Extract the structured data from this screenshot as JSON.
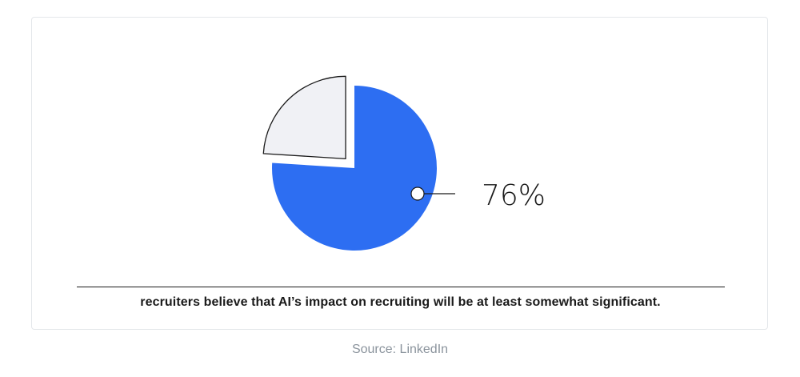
{
  "chart_data": {
    "type": "pie",
    "slices": [
      {
        "label": "",
        "value": 76
      },
      {
        "label": "",
        "value": 24
      }
    ],
    "data_label": "76%",
    "colors": {
      "primary": "#2d6ef2",
      "secondary": "#f0f1f5",
      "outline": "#1a1a1a"
    }
  },
  "caption": "recruiters believe that AI’s impact on recruiting will be at least somewhat significant.",
  "source": "Source: LinkedIn"
}
